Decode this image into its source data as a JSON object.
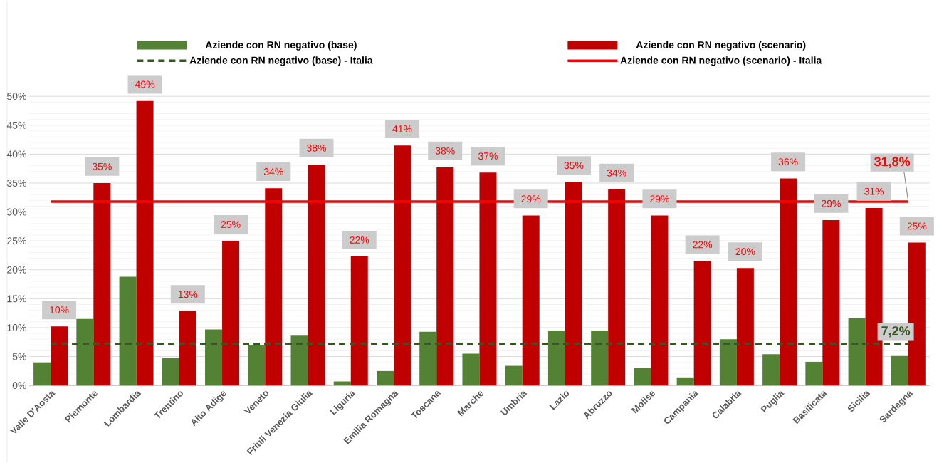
{
  "chart_data": {
    "type": "bar",
    "categories": [
      "Valle D'Aosta",
      "Piemonte",
      "Lombardia",
      "Trentino",
      "Alto Adige",
      "Veneto",
      "Friuli Venezia Giulia",
      "Liguria",
      "Emilia Romagna",
      "Toscana",
      "Marche",
      "Umbria",
      "Lazio",
      "Abruzzo",
      "Molise",
      "Campania",
      "Calabria",
      "Puglia",
      "Basilicata",
      "Sicilia",
      "Sardegna"
    ],
    "series": [
      {
        "name": "Aziende con RN negativo (base)",
        "type": "bar",
        "color": "#548235",
        "values": [
          4.0,
          11.5,
          18.8,
          4.7,
          9.7,
          7.0,
          8.6,
          0.7,
          2.5,
          9.3,
          5.5,
          3.4,
          9.5,
          9.5,
          3.0,
          1.4,
          8.0,
          5.4,
          4.1,
          11.6,
          5.1
        ]
      },
      {
        "name": "Aziende con RN negativo (scenario)",
        "type": "bar",
        "color": "#c00000",
        "values": [
          10.2,
          35.0,
          49.2,
          12.9,
          25.0,
          34.1,
          38.2,
          22.3,
          41.5,
          37.7,
          36.8,
          29.4,
          35.2,
          33.9,
          29.4,
          21.5,
          20.3,
          35.8,
          28.6,
          30.7,
          24.7
        ],
        "value_labels": [
          "10%",
          "35%",
          "49%",
          "13%",
          "25%",
          "34%",
          "38%",
          "22%",
          "41%",
          "38%",
          "37%",
          "29%",
          "35%",
          "34%",
          "29%",
          "22%",
          "20%",
          "36%",
          "29%",
          "31%",
          "25%"
        ]
      },
      {
        "name": "Aziende con RN negativo (base) - Italia",
        "type": "line",
        "line_style": "dashed",
        "color": "#375623",
        "values": [
          7.2,
          7.2,
          7.2,
          7.2,
          7.2,
          7.2,
          7.2,
          7.2,
          7.2,
          7.2,
          7.2,
          7.2,
          7.2,
          7.2,
          7.2,
          7.2,
          7.2,
          7.2,
          7.2,
          7.2,
          7.2
        ],
        "value_labels": [
          null,
          null,
          null,
          null,
          null,
          null,
          null,
          null,
          null,
          null,
          null,
          null,
          null,
          null,
          null,
          null,
          null,
          null,
          null,
          null,
          "7,2%"
        ]
      },
      {
        "name": "Aziende con RN negativo (scenario) - Italia",
        "type": "line",
        "line_style": "solid",
        "color": "#ff0000",
        "values": [
          31.8,
          31.8,
          31.8,
          31.8,
          31.8,
          31.8,
          31.8,
          31.8,
          31.8,
          31.8,
          31.8,
          null,
          31.8,
          31.8,
          null,
          31.8,
          31.8,
          31.8,
          null,
          31.8,
          31.8
        ],
        "value_labels": [
          null,
          null,
          null,
          null,
          null,
          null,
          null,
          null,
          null,
          null,
          null,
          null,
          null,
          null,
          null,
          null,
          null,
          null,
          null,
          null,
          "31,8%"
        ]
      }
    ],
    "ylim": [
      0,
      50
    ],
    "yticks": [
      {
        "value": 0,
        "label": "0%"
      },
      {
        "value": 5,
        "label": "5%"
      },
      {
        "value": 10,
        "label": "10%"
      },
      {
        "value": 15,
        "label": "15%"
      },
      {
        "value": 20,
        "label": "20%"
      },
      {
        "value": 25,
        "label": "25%"
      },
      {
        "value": 30,
        "label": "30%"
      },
      {
        "value": 35,
        "label": "35%"
      },
      {
        "value": 40,
        "label": "40%"
      },
      {
        "value": 45,
        "label": "45%"
      },
      {
        "value": 50,
        "label": "50%"
      }
    ],
    "grid": "y",
    "legend": "top"
  }
}
